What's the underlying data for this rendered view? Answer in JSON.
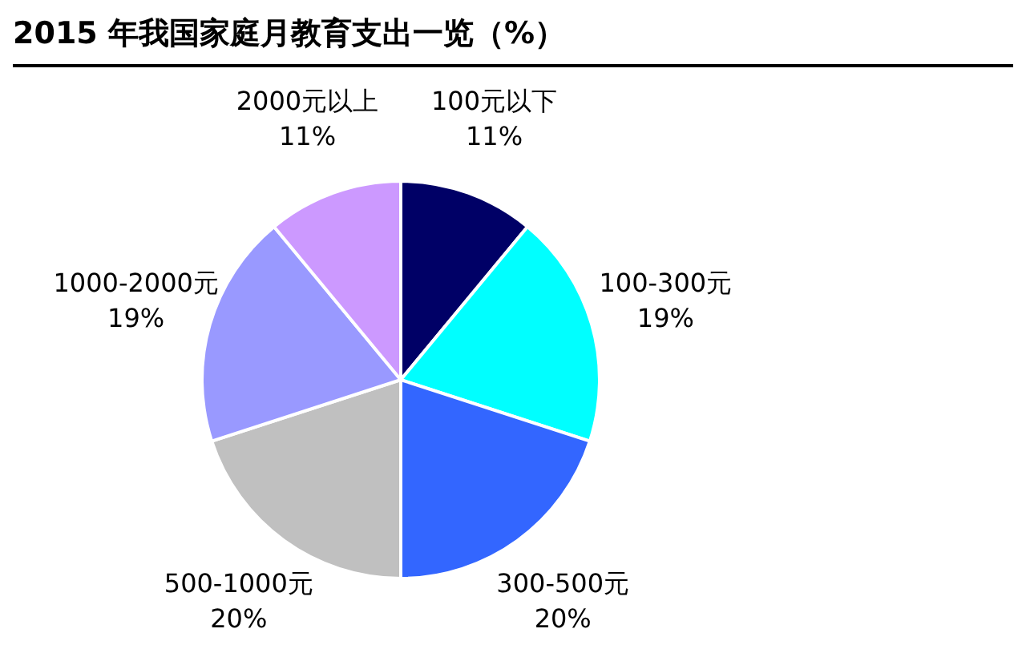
{
  "chart_data": {
    "type": "pie",
    "title": "2015 年我国家庭月教育支出一览（%）",
    "categories": [
      "100元以下",
      "100-300元",
      "300-500元",
      "500-1000元",
      "1000-2000元",
      "2000元以上"
    ],
    "values": [
      11,
      19,
      20,
      20,
      19,
      11
    ],
    "colors": [
      "#000066",
      "#00ffff",
      "#3366ff",
      "#c0c0c0",
      "#9999ff",
      "#cc99ff"
    ],
    "value_labels": [
      "11%",
      "19%",
      "20%",
      "20%",
      "19%",
      "11%"
    ],
    "legend": false
  }
}
